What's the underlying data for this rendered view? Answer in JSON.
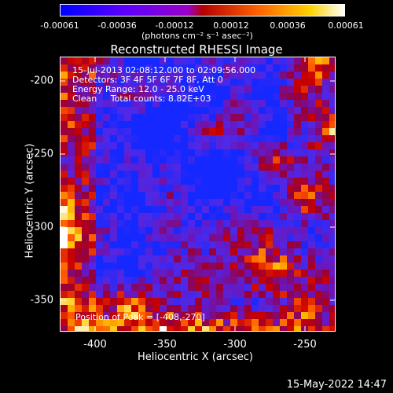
{
  "colorbar": {
    "ticks": [
      "-0.00061",
      "-0.00036",
      "-0.00012",
      "0.00012",
      "0.00036",
      "0.00061"
    ],
    "units": "(photons cm⁻² s⁻¹ asec⁻²)",
    "colors": [
      "#0000ff",
      "#5a00ff",
      "#9b00c8",
      "#c80000",
      "#ff6400",
      "#ffd200",
      "#ffffff"
    ]
  },
  "title": "Reconstructed RHESSI Image",
  "annotations": [
    "15-Jul-2013 02:08:12.000 to 02:09:56.000",
    "Detectors: 3F 4F 5F 6F 7F 8F, Att 0",
    "Energy Range: 12.0 - 25.0 keV",
    "Clean     Total counts: 8.82E+03"
  ],
  "peak_label": "Position of Peak = [-408,-270]",
  "axes": {
    "xlabel": "Heliocentric X (arcsec)",
    "ylabel": "Heliocentric Y (arcsec)",
    "xticks": [
      "-400",
      "-350",
      "-300",
      "-250"
    ],
    "yticks": [
      "-200",
      "-250",
      "-300",
      "-350"
    ],
    "xlim": [
      -425,
      -230
    ],
    "ylim": [
      -375,
      -187
    ]
  },
  "date": "15-May-2022 14:47"
}
